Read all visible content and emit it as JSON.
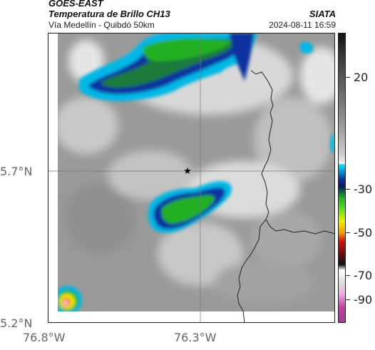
{
  "header": {
    "satellite": "GOES-EAST",
    "product": "Temperatura de Brillo CH13",
    "org": "SIATA",
    "route": "Vía Medellín - Quibdó 50km",
    "timestamp": "2024-08-11 16:59"
  },
  "axes": {
    "lat_labels": [
      "5.7°N",
      "5.2°N"
    ],
    "lon_labels": [
      "76.8°W",
      "76.3°W"
    ]
  },
  "colorbar": {
    "tick_labels": [
      "20",
      "-30",
      "-50",
      "-70",
      "-90"
    ],
    "unit": "",
    "colors": {
      "warm": "#e8e8e8",
      "cyan": "#00b8e6",
      "blue": "#1030a0",
      "navy": "#0a1a5a",
      "green": "#22b022",
      "yellow": "#f0f000",
      "orange": "#f08000",
      "red": "#d01010",
      "black": "#111111",
      "magenta": "#c040a0"
    }
  },
  "map": {
    "point_marker": "star-icon"
  }
}
